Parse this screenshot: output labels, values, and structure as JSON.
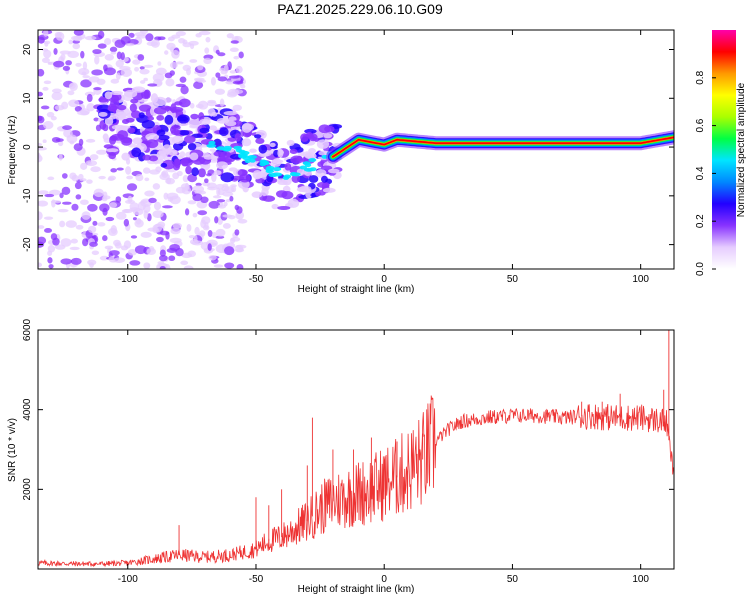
{
  "page_title": "PAZ1.2025.229.06.10.G09",
  "chart_data": [
    {
      "type": "heatmap",
      "title": "PAZ1.2025.229.06.10.G09",
      "xlabel": "Height of straight line (km)",
      "ylabel": "Frequency (Hz)",
      "xlim": [
        -135,
        113
      ],
      "ylim": [
        -25,
        24
      ],
      "xticks": [
        -100,
        -50,
        0,
        50,
        100
      ],
      "yticks": [
        -20,
        -10,
        0,
        10,
        20
      ],
      "grid": false,
      "ridge": [
        {
          "x": -95,
          "y": 5
        },
        {
          "x": -85,
          "y": 3
        },
        {
          "x": -75,
          "y": 2
        },
        {
          "x": -60,
          "y": 0
        },
        {
          "x": -50,
          "y": -3
        },
        {
          "x": -40,
          "y": -6
        },
        {
          "x": -30,
          "y": -4
        },
        {
          "x": -20,
          "y": -2
        },
        {
          "x": -10,
          "y": 1.5
        },
        {
          "x": 0,
          "y": 0.5
        },
        {
          "x": 5,
          "y": 1.5
        },
        {
          "x": 20,
          "y": 0.8
        },
        {
          "x": 50,
          "y": 0.8
        },
        {
          "x": 100,
          "y": 0.8
        },
        {
          "x": 113,
          "y": 2
        }
      ],
      "colorbar": {
        "label": "Normalized spectral amplitude",
        "range": [
          0,
          1
        ],
        "ticks": [
          "0.0",
          "0.2",
          "0.4",
          "0.6",
          "0.8"
        ],
        "colors": [
          "#ffffff",
          "#e6ccff",
          "#8833ff",
          "#2200ff",
          "#0088ff",
          "#00e5ff",
          "#00ff44",
          "#aaff00",
          "#ffff00",
          "#ff9900",
          "#ff0000",
          "#ff00aa"
        ]
      }
    },
    {
      "type": "line",
      "xlabel": "Height of straight line (km)",
      "ylabel": "SNR (10 * v/v)",
      "xlim": [
        -135,
        113
      ],
      "ylim": [
        0,
        6000
      ],
      "xticks": [
        -100,
        -50,
        0,
        50,
        100
      ],
      "yticks": [
        2000,
        4000,
        6000
      ],
      "grid": false,
      "color": "#ee3333",
      "series": [
        {
          "x": [
            -135,
            -120,
            -110,
            -100,
            -90,
            -80,
            -70,
            -60,
            -50,
            -45,
            -40,
            -35,
            -30,
            -25,
            -20,
            -15,
            -10,
            -5,
            0,
            5,
            10,
            15,
            20,
            25,
            30,
            40,
            50,
            60,
            70,
            80,
            90,
            100,
            105,
            110,
            113
          ],
          "y": [
            150,
            130,
            130,
            150,
            250,
            350,
            300,
            350,
            500,
            700,
            800,
            1000,
            1200,
            1500,
            1700,
            1800,
            1900,
            2000,
            2150,
            2300,
            2500,
            2750,
            3200,
            3500,
            3700,
            3800,
            3850,
            3850,
            3800,
            3850,
            3800,
            3800,
            3750,
            3700,
            2300
          ],
          "spikes": [
            {
              "x": -80,
              "y": 1100
            },
            {
              "x": -50,
              "y": 1800
            },
            {
              "x": -45,
              "y": 1600
            },
            {
              "x": -40,
              "y": 2000
            },
            {
              "x": -30,
              "y": 2600
            },
            {
              "x": -28,
              "y": 3800
            },
            {
              "x": -20,
              "y": 3000
            },
            {
              "x": -12,
              "y": 3000
            },
            {
              "x": -5,
              "y": 3300
            },
            {
              "x": 5,
              "y": 3200
            },
            {
              "x": 15,
              "y": 3400
            },
            {
              "x": 77,
              "y": 4200
            },
            {
              "x": 85,
              "y": 4200
            },
            {
              "x": 92,
              "y": 4400
            },
            {
              "x": 109,
              "y": 4500
            },
            {
              "x": 111,
              "y": 6000
            }
          ]
        }
      ]
    }
  ]
}
